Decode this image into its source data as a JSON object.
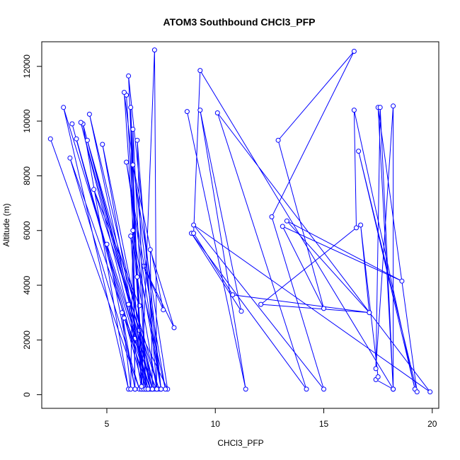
{
  "chart_data": {
    "type": "line",
    "title": "ATOM3 Southbound CHCl3_PFP",
    "xlabel": "CHCl3_PFP",
    "ylabel": "Altitude (m)",
    "xlim": [
      2.0,
      20.3
    ],
    "ylim": [
      -500,
      12900
    ],
    "x_ticks": [
      5,
      10,
      15,
      20
    ],
    "y_ticks": [
      0,
      2000,
      4000,
      6000,
      8000,
      10000,
      12000
    ],
    "series_color": "#0000ff",
    "markers": "open-circle",
    "grid": false,
    "series": [
      {
        "x": [
          2.4,
          6.5,
          3.3,
          7.0,
          3.0,
          6.0,
          3.9,
          7.1,
          3.8,
          6.9,
          4.2,
          7.2,
          4.1,
          7.4,
          4.4,
          6.5,
          5.9,
          6.7,
          5.8,
          7.5,
          6.0,
          6.6,
          6.1,
          6.3,
          6.2,
          6.8,
          6.4,
          7.3,
          7.2,
          6.6,
          6.0,
          6.9,
          6.3,
          7.0,
          6.5,
          7.8,
          6.2,
          7.6,
          6.7,
          8.1,
          7.0,
          7.1,
          6.8
        ],
        "y": [
          9350,
          200,
          8650,
          200,
          10500,
          200,
          9900,
          200,
          9950,
          200,
          10250,
          200,
          9300,
          200,
          7500,
          3250,
          10950,
          200,
          11050,
          200,
          11650,
          200,
          10500,
          200,
          9700,
          200,
          9300,
          200,
          12600,
          200,
          3300,
          200,
          2050,
          200,
          2350,
          200,
          8400,
          3100,
          4700,
          2450,
          5300,
          200,
          200
        ]
      },
      {
        "x": [
          3.4,
          6.7,
          3.6,
          6.8,
          4.8,
          7.1,
          5.0,
          6.3,
          5.7,
          6.1,
          6.2,
          7.5,
          5.9,
          7.7,
          6.1,
          6.6,
          6.4,
          7.3,
          5.8,
          6.9
        ],
        "y": [
          9900,
          200,
          9350,
          200,
          9150,
          200,
          5500,
          200,
          3000,
          200,
          6000,
          200,
          8500,
          200,
          5800,
          300,
          4300,
          200,
          2800,
          200
        ]
      },
      {
        "x": [
          8.7,
          11.4,
          9.3,
          11.2,
          8.9,
          14.2,
          10.1,
          19.9,
          9.0,
          15.0,
          12.6,
          16.4,
          12.9,
          15.0,
          13.1,
          18.6,
          13.3,
          17.1,
          12.1,
          16.5,
          16.4,
          19.2,
          16.6,
          19.3,
          17.5,
          18.2,
          18.2,
          17.4,
          17.6,
          18.2,
          17.4,
          17.5,
          16.7,
          17.1,
          10.8,
          9.0,
          9.3,
          18.2
        ],
        "y": [
          10350,
          200,
          10400,
          3050,
          5900,
          200,
          10300,
          100,
          6200,
          200,
          6500,
          12550,
          9300,
          3150,
          6150,
          4150,
          6350,
          3000,
          3300,
          6100,
          10400,
          200,
          8900,
          100,
          10500,
          200,
          10550,
          950,
          10500,
          200,
          550,
          650,
          6200,
          3000,
          3650,
          5900,
          11850,
          200
        ]
      }
    ]
  }
}
